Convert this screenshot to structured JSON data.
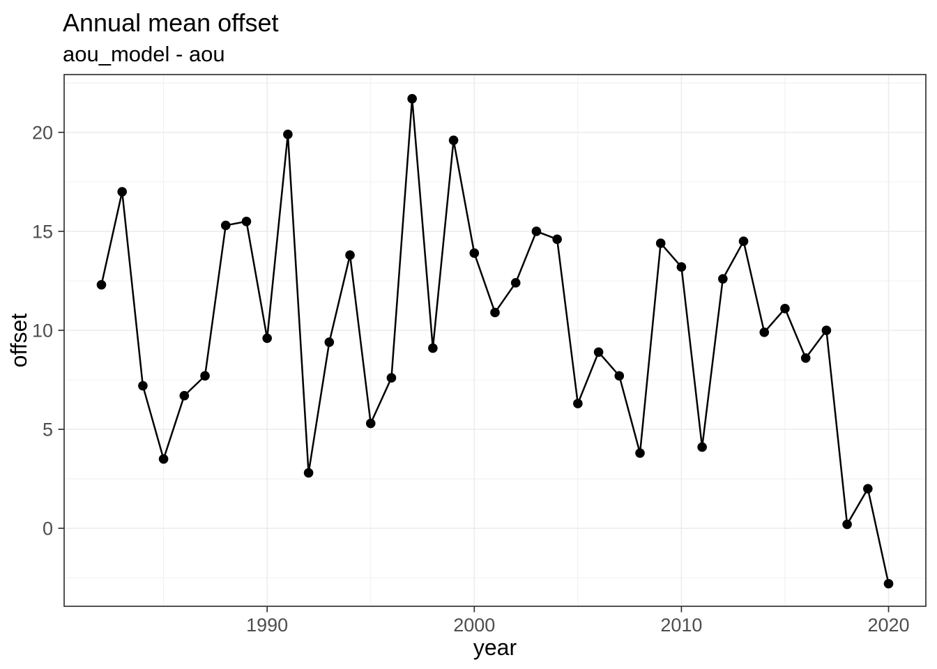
{
  "header": {
    "title": "Annual mean offset",
    "subtitle": "aou_model - aou"
  },
  "chart_data": {
    "type": "line",
    "title": "Annual mean offset",
    "subtitle": "aou_model - aou",
    "xlabel": "year",
    "ylabel": "offset",
    "legend": "none",
    "grid": true,
    "series": [
      {
        "name": "offset",
        "x": [
          1982,
          1983,
          1984,
          1985,
          1986,
          1987,
          1988,
          1989,
          1990,
          1991,
          1992,
          1993,
          1994,
          1995,
          1996,
          1997,
          1998,
          1999,
          2000,
          2001,
          2002,
          2003,
          2004,
          2005,
          2006,
          2007,
          2008,
          2009,
          2010,
          2011,
          2012,
          2013,
          2014,
          2015,
          2016,
          2017,
          2018,
          2019,
          2020
        ],
        "y": [
          12.3,
          17.0,
          7.2,
          3.5,
          6.7,
          7.7,
          15.3,
          15.5,
          9.6,
          19.9,
          2.8,
          9.4,
          13.8,
          5.3,
          7.6,
          21.7,
          9.1,
          19.6,
          13.9,
          10.9,
          12.4,
          15.0,
          14.6,
          6.3,
          8.9,
          7.7,
          3.8,
          14.4,
          13.2,
          4.1,
          12.6,
          14.5,
          9.9,
          11.1,
          8.6,
          10.0,
          0.2,
          2.0,
          -2.8
        ]
      }
    ],
    "xlim": [
      1980.2,
      2021.8
    ],
    "ylim": [
      -3.94,
      22.92
    ],
    "x_major_ticks": [
      1990,
      2000,
      2010,
      2020
    ],
    "x_minor_gridlines": [
      1985,
      1995,
      2005,
      2015
    ],
    "y_major_ticks": [
      0,
      5,
      10,
      15,
      20
    ],
    "y_minor_gridlines": [
      -2.5,
      2.5,
      7.5,
      12.5,
      17.5,
      22.5
    ],
    "style": {
      "line_color": "#000000",
      "point_color": "#000000",
      "panel_border_color": "#333333",
      "major_grid_color": "#ebebeb",
      "minor_grid_color": "#ebebeb",
      "tick_mark_color": "#333333",
      "tick_label_color": "#4d4d4d",
      "background_color": "#ffffff"
    }
  }
}
